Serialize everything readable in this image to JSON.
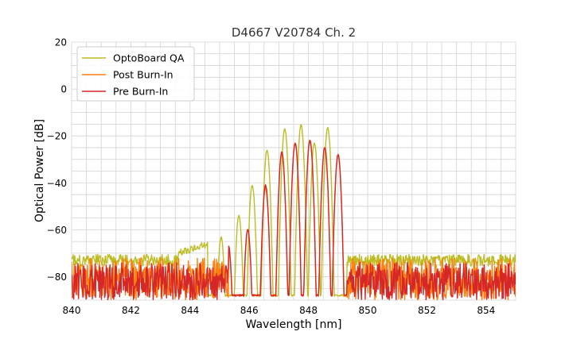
{
  "chart_data": {
    "type": "line",
    "title": "D4667 V20784 Ch. 2",
    "xlabel": "Wavelength [nm]",
    "ylabel": "Optical Power [dB]",
    "xlim": [
      840,
      855
    ],
    "ylim": [
      -90,
      20
    ],
    "xticks": [
      "840",
      "842",
      "844",
      "846",
      "848",
      "850",
      "852",
      "854"
    ],
    "yticks": [
      "20",
      "0",
      "−20",
      "−40",
      "−60",
      "−80"
    ],
    "grid": true,
    "legend_position": "top-left",
    "series": [
      {
        "name": "OptoBoard QA",
        "color": "#bcbd22",
        "noise_floor": -73,
        "noise_range": [
          -71,
          -77
        ],
        "band_start": 844.6,
        "band_end": 849.3,
        "peaks": [
          {
            "x": 845.05,
            "y": -63
          },
          {
            "x": 845.65,
            "y": -54
          },
          {
            "x": 846.1,
            "y": -41
          },
          {
            "x": 846.6,
            "y": -26
          },
          {
            "x": 847.2,
            "y": -17
          },
          {
            "x": 847.75,
            "y": -15.5
          },
          {
            "x": 848.2,
            "y": -23
          },
          {
            "x": 848.65,
            "y": -16.5
          }
        ]
      },
      {
        "name": "Post Burn-In",
        "color": "#ff7f0e",
        "noise_floor": -80,
        "noise_range": [
          -72,
          -90
        ],
        "band_start": 845.3,
        "band_end": 849.3,
        "peaks": [
          {
            "x": 845.3,
            "y": -68
          },
          {
            "x": 845.95,
            "y": -60
          },
          {
            "x": 846.55,
            "y": -42
          },
          {
            "x": 847.1,
            "y": -27
          },
          {
            "x": 847.55,
            "y": -23
          },
          {
            "x": 848.05,
            "y": -22
          },
          {
            "x": 848.55,
            "y": -25
          },
          {
            "x": 849.0,
            "y": -28
          }
        ]
      },
      {
        "name": "Pre Burn-In",
        "color": "#d62728",
        "noise_floor": -82,
        "noise_range": [
          -74,
          -90
        ],
        "band_start": 845.3,
        "band_end": 849.3,
        "peaks": [
          {
            "x": 845.3,
            "y": -67
          },
          {
            "x": 845.95,
            "y": -60
          },
          {
            "x": 846.55,
            "y": -41
          },
          {
            "x": 847.1,
            "y": -27
          },
          {
            "x": 847.55,
            "y": -23
          },
          {
            "x": 848.05,
            "y": -22
          },
          {
            "x": 848.55,
            "y": -25
          },
          {
            "x": 849.0,
            "y": -28
          }
        ]
      }
    ]
  }
}
